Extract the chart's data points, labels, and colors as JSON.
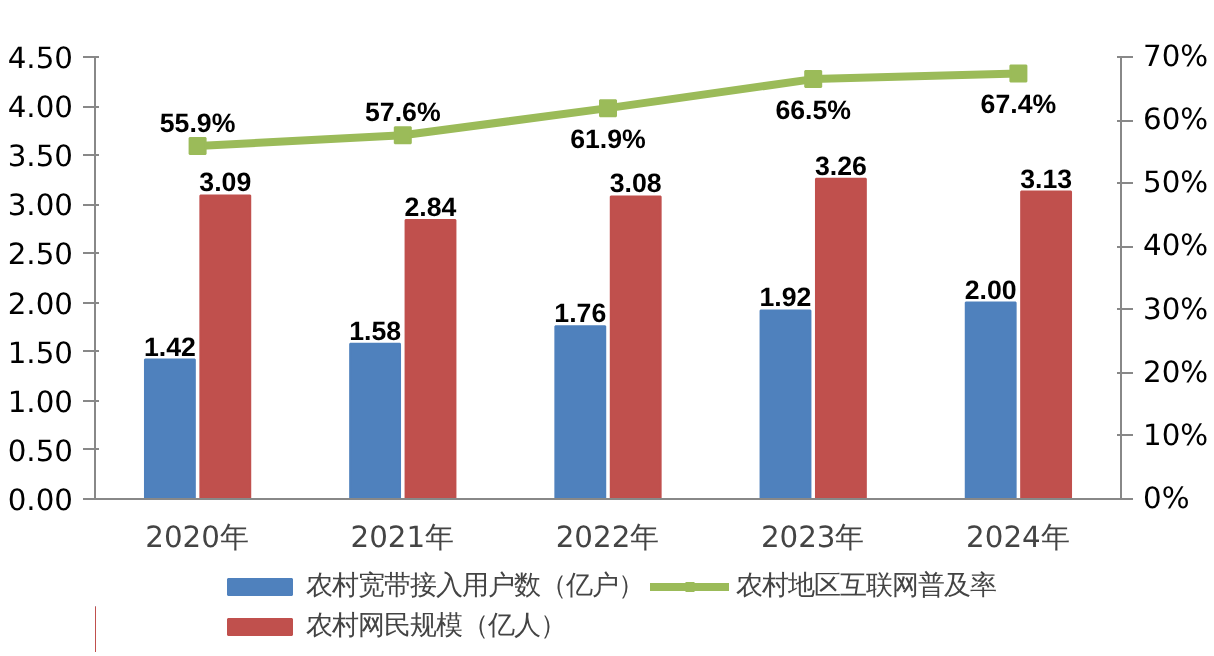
{
  "chart_data": {
    "type": "bar",
    "categories": [
      "2020年",
      "2021年",
      "2022年",
      "2023年",
      "2024年"
    ],
    "series": [
      {
        "name": "农村宽带接入用户数（亿户）",
        "color": "#4f81bd",
        "values": [
          1.42,
          1.58,
          1.76,
          1.92,
          2.0
        ],
        "value_labels": [
          "1.42",
          "1.58",
          "1.76",
          "1.92",
          "2.00"
        ]
      },
      {
        "name": "农村网民规模（亿人）",
        "color": "#c0504d",
        "values": [
          3.09,
          2.84,
          3.08,
          3.26,
          3.13
        ],
        "value_labels": [
          "3.09",
          "2.84",
          "3.08",
          "3.26",
          "3.13"
        ]
      },
      {
        "name": "农村地区互联网普及率",
        "color": "#9bbb59",
        "type": "line",
        "axis": "y2",
        "marker": "square",
        "values": [
          55.9,
          57.6,
          61.9,
          66.5,
          67.4
        ],
        "value_labels": [
          "55.9%",
          "57.6%",
          "61.9%",
          "66.5%",
          "67.4%"
        ]
      }
    ],
    "ylim": [
      0,
      4.5
    ],
    "yticks": [
      {
        "value": 0,
        "label": "0.00"
      },
      {
        "value": 0.5,
        "label": "0.50"
      },
      {
        "value": 1,
        "label": "1.00"
      },
      {
        "value": 1.5,
        "label": "1.50"
      },
      {
        "value": 2,
        "label": "2.00"
      },
      {
        "value": 2.5,
        "label": "2.50"
      },
      {
        "value": 3,
        "label": "3.00"
      },
      {
        "value": 3.5,
        "label": "3.50"
      },
      {
        "value": 4,
        "label": "4.00"
      },
      {
        "value": 4.5,
        "label": "4.50"
      }
    ],
    "y2lim": [
      0,
      70
    ],
    "y2ticks": [
      {
        "value": 0,
        "label": "0%"
      },
      {
        "value": 10,
        "label": "10%"
      },
      {
        "value": 20,
        "label": "20%"
      },
      {
        "value": 30,
        "label": "30%"
      },
      {
        "value": 40,
        "label": "40%"
      },
      {
        "value": 50,
        "label": "50%"
      },
      {
        "value": 60,
        "label": "60%"
      },
      {
        "value": 70,
        "label": "70%"
      }
    ],
    "grid": false,
    "legend": "bottom"
  }
}
